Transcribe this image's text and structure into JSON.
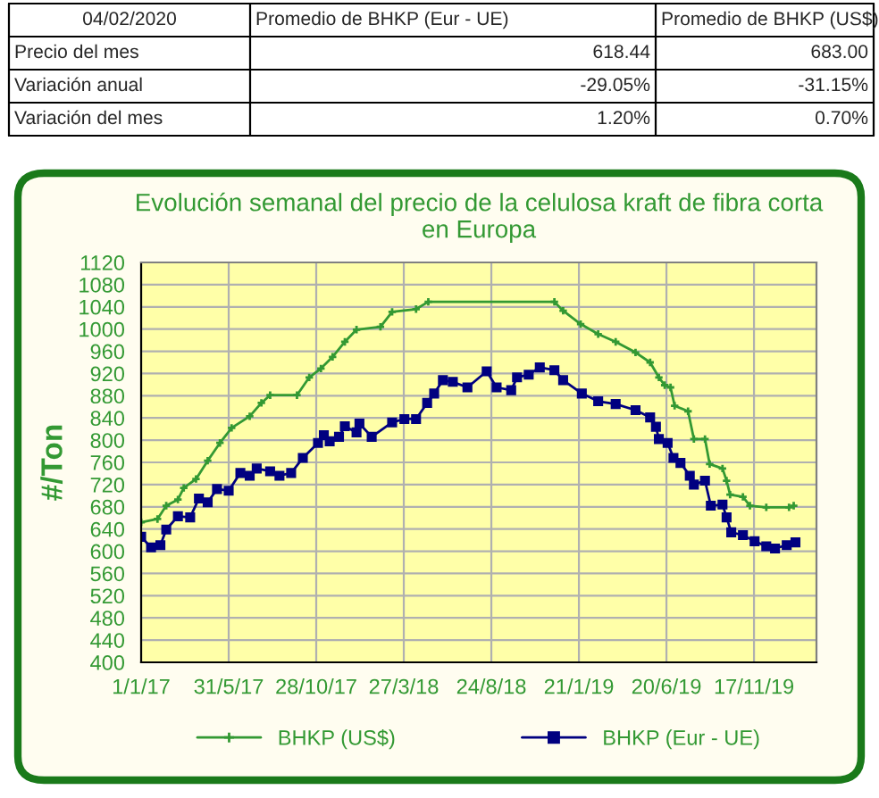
{
  "chart_data": {
    "type": "line",
    "title": "Evolución semanal del precio de la celulosa kraft de fibra corta\nen Europa",
    "ylabel": "#/Ton",
    "annotations": [
      "04/02/2020",
      "Promedio de BHKP (Eur - UE)",
      "Promedio de BHKP (US$)",
      "Precio del mes",
      "618.44",
      "683.00",
      "Variación anual",
      "-29.05%",
      "-31.15%",
      "Variación del mes",
      "1.20%",
      "0.70%"
    ],
    "xlim": [
      "2017-01-01",
      "2020-03-03"
    ],
    "xticks": [
      {
        "value": "2017-01-01",
        "label": "1/1/17"
      },
      {
        "value": "2017-05-31",
        "label": "31/5/17"
      },
      {
        "value": "2017-10-28",
        "label": "28/10/17"
      },
      {
        "value": "2018-03-27",
        "label": "27/3/18"
      },
      {
        "value": "2018-08-24",
        "label": "24/8/18"
      },
      {
        "value": "2019-01-21",
        "label": "21/1/19"
      },
      {
        "value": "2019-06-20",
        "label": "20/6/19"
      },
      {
        "value": "2019-11-17",
        "label": "17/11/19"
      }
    ],
    "ylim": [
      400,
      1120
    ],
    "yticks": [
      400,
      440,
      480,
      520,
      560,
      600,
      640,
      680,
      720,
      760,
      800,
      840,
      880,
      920,
      960,
      1000,
      1040,
      1080,
      1120
    ],
    "grid": true,
    "legend": "bottom",
    "line_style": "solid",
    "series": [
      {
        "name": "BHKP (US$)",
        "color": "#339933",
        "marker": "cross",
        "x": [
          "2017-01-01",
          "2017-01-29",
          "2017-02-13",
          "2017-03-05",
          "2017-03-15",
          "2017-04-05",
          "2017-04-25",
          "2017-05-16",
          "2017-06-05",
          "2017-07-06",
          "2017-07-26",
          "2017-08-10",
          "2017-09-25",
          "2017-10-16",
          "2017-11-05",
          "2017-11-25",
          "2017-12-16",
          "2018-01-05",
          "2018-02-15",
          "2018-03-07",
          "2018-04-17",
          "2018-05-08",
          "2018-12-10",
          "2018-12-25",
          "2019-01-24",
          "2019-02-23",
          "2019-03-25",
          "2019-04-28",
          "2019-05-23",
          "2019-06-07",
          "2019-06-17",
          "2019-06-27",
          "2019-07-04",
          "2019-07-27",
          "2019-08-06",
          "2019-08-25",
          "2019-09-02",
          "2019-09-24",
          "2019-10-01",
          "2019-10-07",
          "2019-10-29",
          "2019-11-10",
          "2019-12-08",
          "2020-01-16",
          "2020-01-24"
        ],
        "values": [
          652,
          658,
          682,
          693,
          714,
          730,
          763,
          795,
          822,
          843,
          867,
          881,
          881,
          913,
          929,
          950,
          977,
          999,
          1004,
          1031,
          1036,
          1049,
          1049,
          1033,
          1009,
          991,
          977,
          958,
          940,
          913,
          899,
          895,
          862,
          852,
          802,
          802,
          757,
          749,
          727,
          702,
          698,
          682,
          679,
          679,
          682
        ]
      },
      {
        "name": "BHKP (Eur - UE)",
        "color": "#000080",
        "marker": "square",
        "x": [
          "2017-01-01",
          "2017-01-18",
          "2017-02-03",
          "2017-02-13",
          "2017-03-05",
          "2017-03-26",
          "2017-04-10",
          "2017-04-25",
          "2017-05-11",
          "2017-05-31",
          "2017-06-20",
          "2017-07-06",
          "2017-07-18",
          "2017-08-10",
          "2017-08-26",
          "2017-09-15",
          "2017-10-05",
          "2017-10-31",
          "2017-11-10",
          "2017-11-20",
          "2017-12-06",
          "2017-12-16",
          "2018-01-05",
          "2018-01-10",
          "2018-01-31",
          "2018-03-07",
          "2018-03-28",
          "2018-04-17",
          "2018-05-06",
          "2018-05-18",
          "2018-06-02",
          "2018-06-19",
          "2018-07-14",
          "2018-08-16",
          "2018-09-02",
          "2018-09-27",
          "2018-10-07",
          "2018-10-27",
          "2018-11-15",
          "2018-12-10",
          "2018-12-25",
          "2019-01-26",
          "2019-02-23",
          "2019-03-25",
          "2019-04-28",
          "2019-05-23",
          "2019-06-02",
          "2019-06-07",
          "2019-06-22",
          "2019-07-02",
          "2019-07-14",
          "2019-07-30",
          "2019-08-06",
          "2019-08-25",
          "2019-09-04",
          "2019-09-24",
          "2019-10-01",
          "2019-10-09",
          "2019-10-29",
          "2019-11-18",
          "2019-12-08",
          "2019-12-23",
          "2020-01-12",
          "2020-01-27"
        ],
        "values": [
          626,
          607,
          611,
          639,
          663,
          661,
          695,
          688,
          712,
          709,
          741,
          736,
          749,
          744,
          736,
          741,
          768,
          795,
          809,
          798,
          806,
          825,
          814,
          830,
          806,
          832,
          838,
          838,
          867,
          884,
          908,
          905,
          895,
          924,
          895,
          890,
          913,
          918,
          931,
          926,
          908,
          884,
          870,
          865,
          854,
          841,
          824,
          802,
          795,
          768,
          759,
          736,
          720,
          727,
          682,
          684,
          661,
          634,
          629,
          618,
          609,
          605,
          611,
          616
        ]
      }
    ]
  }
}
